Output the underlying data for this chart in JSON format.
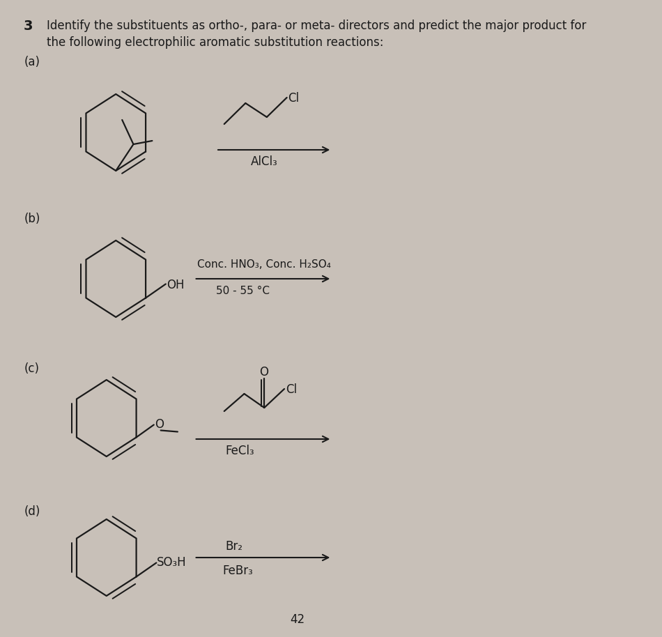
{
  "title_line1": "Identify the substituents as ortho-, para- or meta- directors and predict the major product for",
  "title_line2": "the following electrophilic aromatic substitution reactions:",
  "problem_number": "3",
  "bg_color": "#c8c0b8",
  "text_color": "#1a1a1a",
  "page_number": "42",
  "label_a": "(a)",
  "label_b": "(b)",
  "label_c": "(c)",
  "label_d": "(d)",
  "reagent_a": "AlCl₃",
  "reagent_b1": "Conc. HNO₃, Conc. H₂SO₄",
  "reagent_b2": "50 - 55 °C",
  "reagent_c": "FeCl₃",
  "reagent_d1": "Br₂",
  "reagent_d2": "FeBr₃",
  "sub_b": "OH",
  "sub_c": "O",
  "sub_d": "SO₃H",
  "el_a": "Cl",
  "el_c": "Cl",
  "line_color": "#1a1a1a",
  "lw": 1.6
}
